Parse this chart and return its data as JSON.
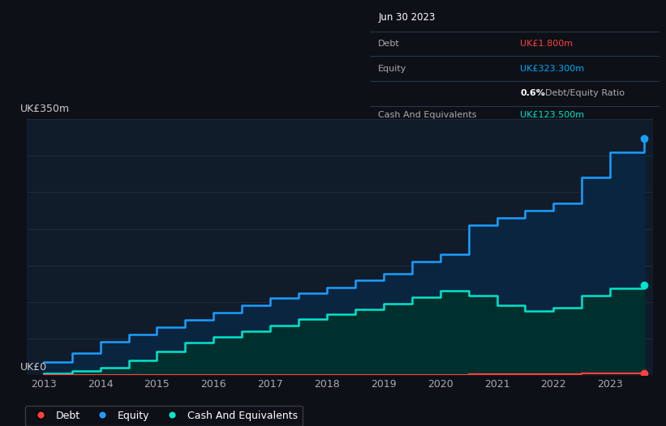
{
  "background_color": "#0d1117",
  "plot_bg_color": "#111c2b",
  "title_box": {
    "date": "Jun 30 2023",
    "debt_label": "Debt",
    "debt_value": "UK£1.800m",
    "debt_color": "#ff4040",
    "equity_label": "Equity",
    "equity_value": "UK£323.300m",
    "equity_color": "#00aaff",
    "ratio_bold": "0.6%",
    "ratio_text": " Debt/Equity Ratio",
    "cash_label": "Cash And Equivalents",
    "cash_value": "UK£123.500m",
    "cash_color": "#00e5cc"
  },
  "ylabel_text": "UK£350m",
  "y0_text": "UK£0",
  "x_ticks": [
    2013,
    2014,
    2015,
    2016,
    2017,
    2018,
    2019,
    2020,
    2021,
    2022,
    2023
  ],
  "ylim": [
    0,
    350
  ],
  "grid_color": "#1e2d3d",
  "equity_color": "#1a9fff",
  "equity_fill": "#0a2540",
  "cash_color": "#00e5cc",
  "cash_fill": "#00302e",
  "debt_color": "#ff4040",
  "years": [
    2013.0,
    2013.5,
    2014.0,
    2014.5,
    2015.0,
    2015.5,
    2016.0,
    2016.5,
    2017.0,
    2017.5,
    2018.0,
    2018.5,
    2019.0,
    2019.5,
    2020.0,
    2020.5,
    2021.0,
    2021.5,
    2022.0,
    2022.5,
    2023.0,
    2023.6
  ],
  "equity": [
    18,
    30,
    45,
    55,
    65,
    75,
    85,
    95,
    105,
    112,
    120,
    130,
    138,
    155,
    165,
    205,
    215,
    225,
    235,
    270,
    305,
    323.3
  ],
  "cash": [
    2,
    5,
    10,
    20,
    32,
    44,
    52,
    60,
    68,
    76,
    83,
    90,
    98,
    106,
    115,
    108,
    95,
    87,
    92,
    108,
    118,
    123.5
  ],
  "debt": [
    0,
    0,
    0,
    0,
    0,
    0,
    0,
    0,
    0,
    0,
    0,
    0,
    0,
    0,
    0,
    0.5,
    1.2,
    1.5,
    1.5,
    1.6,
    1.8,
    1.8
  ],
  "legend_items": [
    {
      "label": "Debt",
      "color": "#ff4040"
    },
    {
      "label": "Equity",
      "color": "#1a9fff"
    },
    {
      "label": "Cash And Equivalents",
      "color": "#00e5cc"
    }
  ]
}
